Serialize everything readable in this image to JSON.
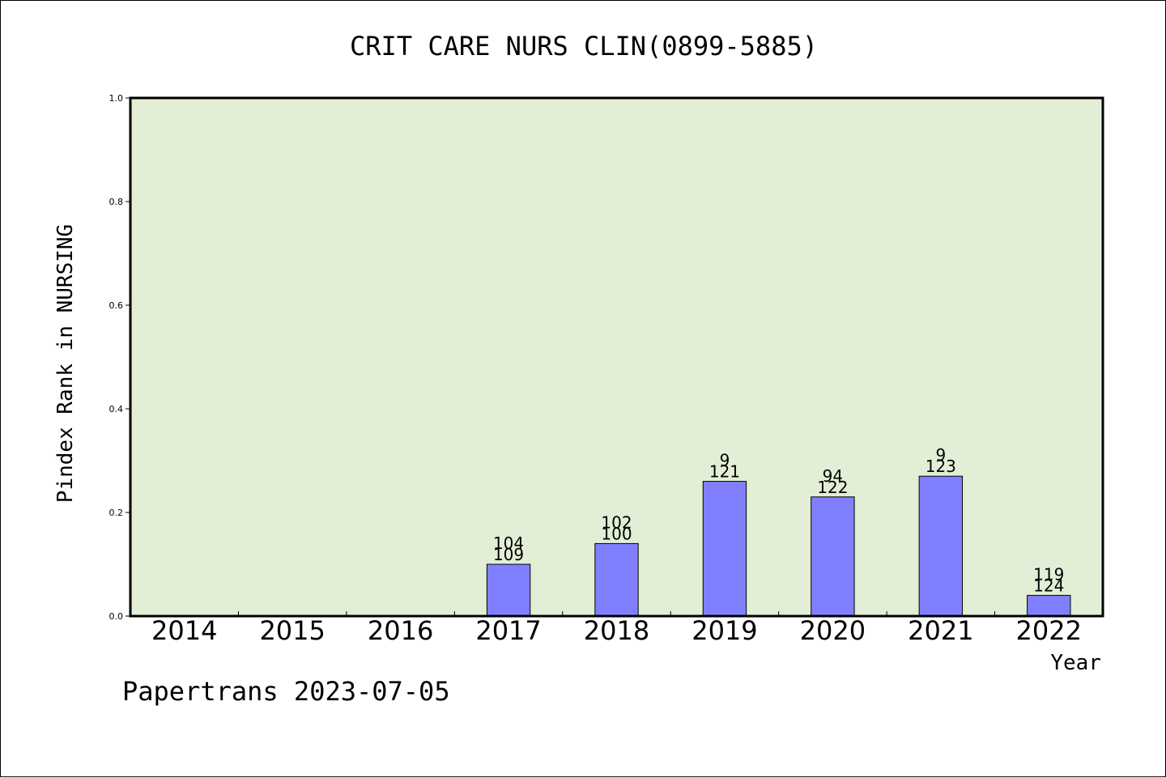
{
  "chart_data": {
    "type": "bar",
    "title": "CRIT CARE NURS CLIN(0899-5885)",
    "xlabel": "Year",
    "ylabel": "Pindex Rank in NURSING",
    "ylim": [
      0,
      1.0
    ],
    "yticks": [
      "0.0",
      "0.2",
      "0.4",
      "0.6",
      "0.8",
      "1.0"
    ],
    "categories": [
      "2014",
      "2015",
      "2016",
      "2017",
      "2018",
      "2019",
      "2020",
      "2021",
      "2022"
    ],
    "values": [
      null,
      null,
      null,
      0.1,
      0.14,
      0.26,
      0.23,
      0.27,
      0.04
    ],
    "labels_top": [
      "",
      "",
      "",
      "104",
      "102",
      "9",
      "94",
      "9",
      "119"
    ],
    "labels_bottom": [
      "",
      "",
      "",
      "109",
      "100",
      "121",
      "122",
      "123",
      "124"
    ],
    "grid": false,
    "colors": {
      "plot_background": "#e2efd6",
      "bar_fill": "#8080ff",
      "bar_stroke": "#000000"
    }
  },
  "footer": {
    "watermark": "Papertrans 2023-07-05"
  }
}
